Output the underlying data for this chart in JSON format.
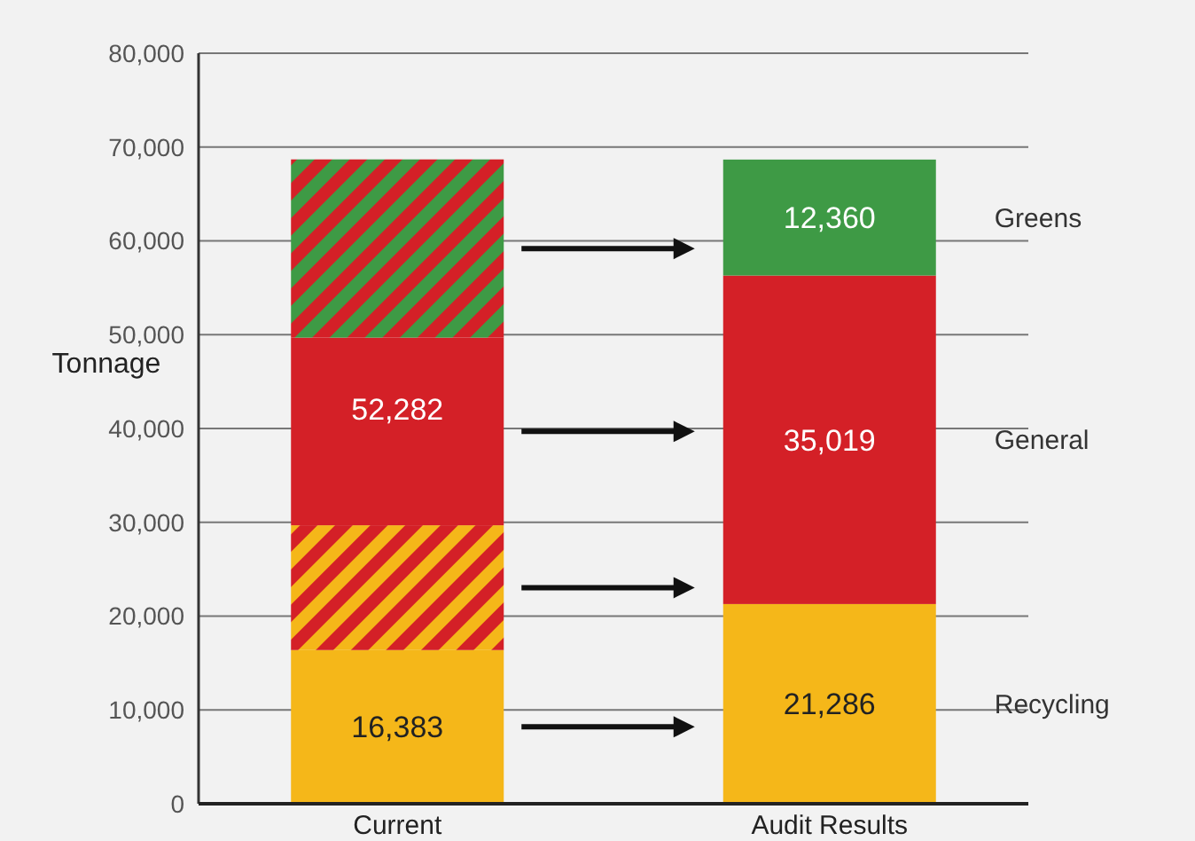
{
  "chart_data": {
    "type": "bar",
    "stacked": true,
    "ylabel": "Tonnage",
    "categories": [
      "Current",
      "Audit Results"
    ],
    "series": [
      {
        "name": "Recycling",
        "color": "#f5b719",
        "values": [
          16383,
          21286
        ],
        "value_labels": [
          "16,383",
          "21,286"
        ]
      },
      {
        "color": "#f5b719",
        "values": [
          13300,
          null
        ]
      },
      {
        "name": "General",
        "color": "#d42027",
        "values": [
          20000,
          35019
        ],
        "value_labels": [
          null,
          "35,019"
        ]
      },
      {
        "color": "#3e9a45",
        "values": [
          19000,
          null
        ]
      },
      {
        "name": "Greens",
        "color": "#3e9a45",
        "values": [
          null,
          12360
        ],
        "value_labels": [
          null,
          "12,360"
        ]
      }
    ],
    "annotations": [
      "52,282"
    ],
    "ylim": [
      0,
      80000
    ],
    "yticks": [
      {
        "value": 0,
        "label": "0"
      },
      {
        "value": 10000,
        "label": "10,000"
      },
      {
        "value": 20000,
        "label": "20,000"
      },
      {
        "value": 30000,
        "label": "30,000"
      },
      {
        "value": 40000,
        "label": "40,000"
      },
      {
        "value": 50000,
        "label": "50,000"
      },
      {
        "value": 60000,
        "label": "60,000"
      },
      {
        "value": 70000,
        "label": "70,000"
      },
      {
        "value": 80000,
        "label": "80,000"
      }
    ],
    "grid": "y"
  }
}
